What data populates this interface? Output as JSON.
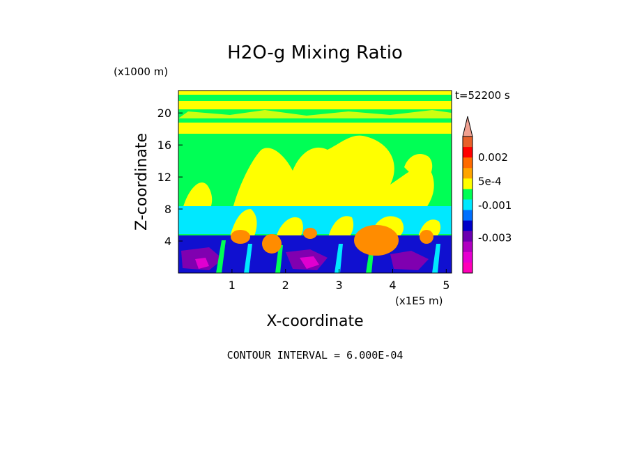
{
  "chart_data": {
    "type": "heatmap",
    "title": "H2O-g Mixing Ratio",
    "y_unit_label": "(x1000 m)",
    "x_unit_label": "(x1E5 m)",
    "xlabel": "X-coordinate",
    "ylabel": "Z-coordinate",
    "time_label": "t=52200 s",
    "contour_interval_label": "CONTOUR INTERVAL = 6.000E-04",
    "x_ticks": [
      "1",
      "2",
      "3",
      "4",
      "5"
    ],
    "x_tick_values": [
      1,
      2,
      3,
      4,
      5
    ],
    "y_ticks": [
      "4",
      "8",
      "12",
      "16",
      "20"
    ],
    "y_tick_values": [
      4,
      8,
      12,
      16,
      20
    ],
    "xlim": [
      0,
      5.1
    ],
    "ylim": [
      0,
      22.8
    ],
    "colorbar": {
      "labels": [
        "0.002",
        "5e-4",
        "-0.001",
        "-0.003"
      ],
      "label_values": [
        0.002,
        0.0005,
        -0.001,
        -0.003
      ],
      "colors_top_to_bottom": [
        "#f0a090",
        "#e8602a",
        "#ff0000",
        "#ff6a00",
        "#ffa500",
        "#ffff00",
        "#00ff55",
        "#00e8ff",
        "#0070ff",
        "#0000c8",
        "#6a00b0",
        "#b000c0",
        "#e600d0",
        "#ff00b8"
      ]
    },
    "colors": {
      "green": "#00ff55",
      "yellow": "#ffff00",
      "cyan": "#00e8ff",
      "orange": "#ff8c00",
      "blue": "#1010d0",
      "purple": "#8000b0",
      "magenta": "#e000d0"
    }
  }
}
